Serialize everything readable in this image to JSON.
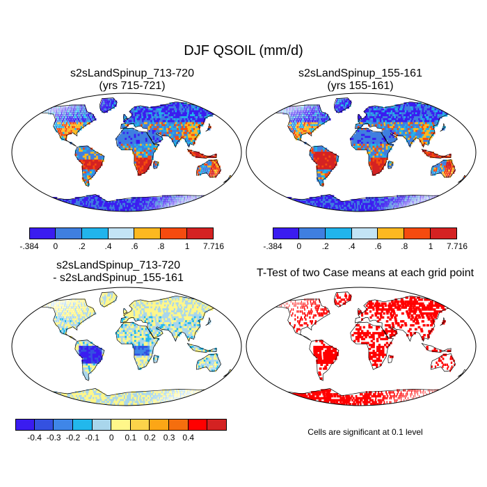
{
  "title": "DJF QSOIL (mm/d)",
  "panels": [
    {
      "title_line1": "s2sLandSpinup_713-720",
      "title_line2": "(yrs 715-721)",
      "kind": "mean"
    },
    {
      "title_line1": "s2sLandSpinup_155-161",
      "title_line2": "(yrs 155-161)",
      "kind": "mean"
    },
    {
      "title_line1": "s2sLandSpinup_713-720",
      "title_line2": "- s2sLandSpinup_155-161",
      "kind": "diff"
    },
    {
      "title_line1": "T-Test of two Case means at each grid point",
      "title_line2": "",
      "kind": "ttest"
    }
  ],
  "colorbar_mean": {
    "colors": [
      "#3a1cf0",
      "#3f7fe0",
      "#21b4ec",
      "#c3e4f5",
      "#fcb820",
      "#f54b0f",
      "#d42222"
    ],
    "labels": [
      "-.384",
      "0",
      ".2",
      ".4",
      ".6",
      ".8",
      "1",
      "7.716"
    ]
  },
  "colorbar_diff": {
    "colors": [
      "#3a1cf0",
      "#3451e0",
      "#3f86e8",
      "#22b8ec",
      "#a9d6ec",
      "#fff78a",
      "#fcd34a",
      "#fca616",
      "#f56e0e",
      "#ff0000",
      "#d42222"
    ],
    "labels": [
      "-0.4",
      "-0.3",
      "-0.2",
      "-0.1",
      "0",
      "0.1",
      "0.2",
      "0.3",
      "0.4"
    ]
  },
  "significance_note": "Cells are significant at 0.1 level",
  "chart_data": [
    {
      "type": "heatmap",
      "title": "s2sLandSpinup_713-720 (yrs 715-721)",
      "variable": "DJF QSOIL",
      "units": "mm/d",
      "levels": [
        -0.384,
        0,
        0.2,
        0.4,
        0.6,
        0.8,
        1,
        7.716
      ]
    },
    {
      "type": "heatmap",
      "title": "s2sLandSpinup_155-161 (yrs 155-161)",
      "variable": "DJF QSOIL",
      "units": "mm/d",
      "levels": [
        -0.384,
        0,
        0.2,
        0.4,
        0.6,
        0.8,
        1,
        7.716
      ]
    },
    {
      "type": "heatmap",
      "title": "s2sLandSpinup_713-720 - s2sLandSpinup_155-161",
      "variable": "DJF QSOIL difference",
      "units": "mm/d",
      "levels": [
        -0.4,
        -0.3,
        -0.2,
        -0.1,
        0,
        0.1,
        0.2,
        0.3,
        0.4
      ]
    },
    {
      "type": "heatmap",
      "title": "T-Test of two Case means at each grid point",
      "significance_level": 0.1
    }
  ]
}
